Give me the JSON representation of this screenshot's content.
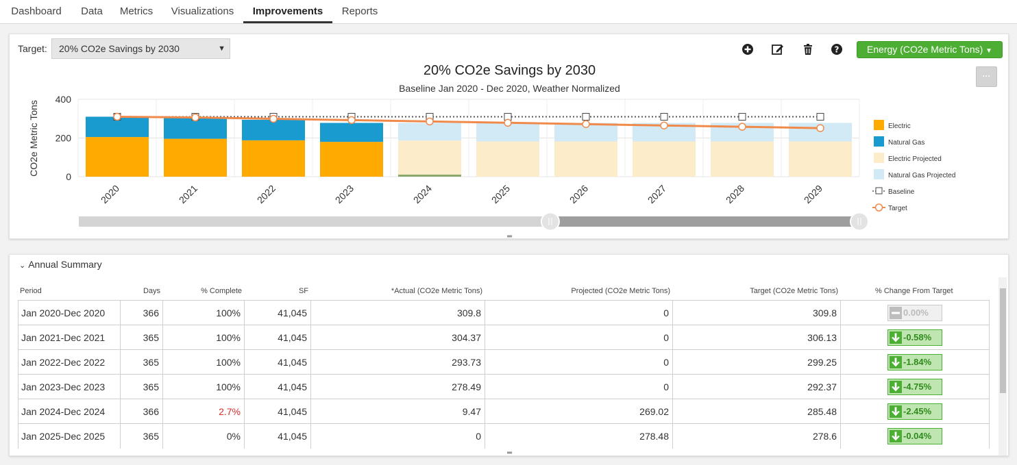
{
  "nav": {
    "tabs": [
      "Dashboard",
      "Data",
      "Metrics",
      "Visualizations",
      "Improvements",
      "Reports"
    ],
    "active": "Improvements"
  },
  "toolbar": {
    "target_label": "Target:",
    "target_value": "20% CO2e Savings by 2030",
    "energy_button": "Energy (CO2e Metric Tons)",
    "more_button": "···",
    "icons": [
      "plus-circle-icon",
      "edit-icon",
      "trash-icon",
      "help-icon"
    ]
  },
  "colors": {
    "electric": "#ffaa00",
    "natural_gas": "#1a9bd0",
    "electric_projected": "#fdecc9",
    "natural_gas_projected": "#d2e9f6",
    "target": "#f08a4b",
    "accent_green": "#4cae32",
    "negative": "#d9302c"
  },
  "chart_data": {
    "type": "bar",
    "title": "20% CO2e Savings by 2030",
    "subtitle": "Baseline Jan 2020 - Dec 2020, Weather Normalized",
    "ylabel": "CO2e Metric Tons",
    "ylim": [
      0,
      400
    ],
    "yticks": [
      "0",
      "200",
      "400"
    ],
    "categories": [
      "2020",
      "2021",
      "2022",
      "2023",
      "2024",
      "2025",
      "2026",
      "2027",
      "2028",
      "2029"
    ],
    "series": [
      {
        "name": "Electric",
        "values": [
          205,
          196,
          188,
          180,
          9,
          0,
          0,
          0,
          0,
          0
        ]
      },
      {
        "name": "Natural Gas",
        "values": [
          105,
          108,
          106,
          98,
          0,
          0,
          0,
          0,
          0,
          0
        ]
      },
      {
        "name": "Electric Projected",
        "values": [
          0,
          0,
          0,
          0,
          178,
          182,
          182,
          182,
          182,
          182
        ]
      },
      {
        "name": "Natural Gas Projected",
        "values": [
          0,
          0,
          0,
          0,
          91,
          96,
          96,
          96,
          96,
          96
        ]
      },
      {
        "name": "Baseline",
        "values": [
          309.8,
          309.8,
          309.8,
          309.8,
          309.8,
          309.8,
          309.8,
          309.8,
          309.8,
          309.8
        ]
      },
      {
        "name": "Target",
        "values": [
          309.8,
          306.13,
          299.25,
          292.37,
          285.48,
          278.6,
          271.7,
          264.8,
          258.0,
          251.1
        ]
      }
    ],
    "legend": [
      "Electric",
      "Natural Gas",
      "Electric Projected",
      "Natural Gas Projected",
      "Baseline",
      "Target"
    ],
    "legend_position": "right",
    "grid": true,
    "range_selector": {
      "start_fraction": 0.0,
      "end_fraction": 1.0,
      "split_fraction": 0.604
    }
  },
  "summary": {
    "title": "Annual Summary",
    "columns": [
      "Period",
      "Days",
      "% Complete",
      "SF",
      "*Actual (CO2e Metric Tons)",
      "Projected (CO2e Metric Tons)",
      "Target (CO2e Metric Tons)",
      "% Change From Target"
    ],
    "rows": [
      {
        "period": "Jan 2020-Dec 2020",
        "days": "366",
        "complete": "100%",
        "sf": "41,045",
        "actual": "309.8",
        "projected": "0",
        "target": "309.8",
        "change": "0.00%",
        "trend": "neutral"
      },
      {
        "period": "Jan 2021-Dec 2021",
        "days": "365",
        "complete": "100%",
        "sf": "41,045",
        "actual": "304.37",
        "projected": "0",
        "target": "306.13",
        "change": "-0.58%",
        "trend": "down"
      },
      {
        "period": "Jan 2022-Dec 2022",
        "days": "365",
        "complete": "100%",
        "sf": "41,045",
        "actual": "293.73",
        "projected": "0",
        "target": "299.25",
        "change": "-1.84%",
        "trend": "down"
      },
      {
        "period": "Jan 2023-Dec 2023",
        "days": "365",
        "complete": "100%",
        "sf": "41,045",
        "actual": "278.49",
        "projected": "0",
        "target": "292.37",
        "change": "-4.75%",
        "trend": "down"
      },
      {
        "period": "Jan 2024-Dec 2024",
        "days": "366",
        "complete": "2.7%",
        "sf": "41,045",
        "actual": "9.47",
        "projected": "269.02",
        "target": "285.48",
        "change": "-2.45%",
        "trend": "down"
      },
      {
        "period": "Jan 2025-Dec 2025",
        "days": "365",
        "complete": "0%",
        "sf": "41,045",
        "actual": "0",
        "projected": "278.48",
        "target": "278.6",
        "change": "-0.04%",
        "trend": "down"
      }
    ]
  }
}
